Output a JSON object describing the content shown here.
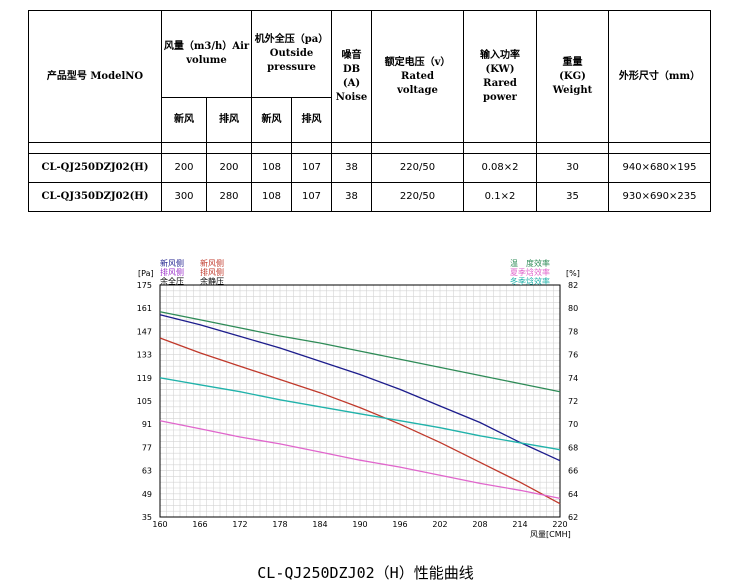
{
  "table": {
    "headers": {
      "model": "产品型号 ModelNO",
      "airflow": [
        "风量（m3/h）Air",
        "volume"
      ],
      "pressure": [
        "机外全压（pa）",
        "Outside",
        "pressure"
      ],
      "noise": [
        "噪音DB",
        "(A)",
        "Noise"
      ],
      "voltage": [
        "额定电压（v）",
        "Rated",
        "voltage"
      ],
      "power": [
        "输入功率",
        "(KW)",
        "Rared power"
      ],
      "weight": [
        "重量",
        "(KG)",
        "Weight"
      ],
      "size": "外形尺寸（mm）",
      "sub_fresh": "新风",
      "sub_exhaust": "排风",
      "sub_fresh2": "新风",
      "sub_exhaust2": "排风"
    },
    "rows": [
      {
        "model": "CL-QJ250DZJ02(H)",
        "air_fresh": "200",
        "air_exhaust": "200",
        "p_fresh": "108",
        "p_exhaust": "107",
        "noise": "38",
        "voltage": "220/50",
        "power": "0.08×2",
        "weight": "30",
        "size": "940×680×195"
      },
      {
        "model": "CL-QJ350DZJ02(H)",
        "air_fresh": "300",
        "air_exhaust": "280",
        "p_fresh": "108",
        "p_exhaust": "107",
        "noise": "38",
        "voltage": "220/50",
        "power": "0.1×2",
        "weight": "35",
        "size": "930×690×235"
      }
    ]
  },
  "chart_data": {
    "type": "line",
    "title": "CL-QJ250DZJ02（H）性能曲线",
    "xlabel": "风量[CMH]",
    "ylabel_left": "[Pa]",
    "ylabel_right": "[%]",
    "xlim": [
      160,
      220
    ],
    "ylim_left": [
      35,
      175
    ],
    "ylim_right": [
      62,
      82
    ],
    "xticks": [
      160,
      166,
      172,
      178,
      184,
      190,
      196,
      202,
      208,
      214,
      220
    ],
    "yticks_left": [
      35,
      49,
      63,
      77,
      91,
      105,
      119,
      133,
      147,
      161,
      175
    ],
    "yticks_right": [
      62,
      64,
      66,
      68,
      70,
      72,
      74,
      76,
      78,
      80,
      82
    ],
    "grid": true,
    "legend_left": [
      {
        "label": "新风侧",
        "color": "#1c1c8c"
      },
      {
        "label": "排风侧",
        "color": "#9b30c9"
      },
      {
        "label": "余全压",
        "color": "#000000"
      },
      {
        "label": "新风侧",
        "color": "#c0392b"
      },
      {
        "label": "排风侧",
        "color": "#c0392b"
      },
      {
        "label": "余静压",
        "color": "#000000"
      }
    ],
    "legend_right": [
      {
        "label": "温　度效率",
        "color": "#2e8b57"
      },
      {
        "label": "夏季焓效率",
        "color": "#e066cc"
      },
      {
        "label": "冬季焓效率",
        "color": "#20b2aa"
      }
    ],
    "series": [
      {
        "axis": "left",
        "color": "#1c1c8c",
        "x": [
          160,
          166,
          172,
          178,
          184,
          190,
          196,
          202,
          208,
          214,
          220
        ],
        "y": [
          157,
          151,
          144,
          137,
          129,
          121,
          112,
          102,
          92,
          80,
          69
        ]
      },
      {
        "axis": "left",
        "color": "#c0392b",
        "x": [
          160,
          166,
          172,
          178,
          184,
          190,
          196,
          202,
          208,
          214,
          220
        ],
        "y": [
          143,
          134,
          126,
          118,
          110,
          101,
          91,
          80,
          68,
          56,
          43
        ]
      },
      {
        "axis": "right",
        "color": "#2e8b57",
        "x": [
          160,
          166,
          172,
          178,
          184,
          190,
          196,
          202,
          208,
          214,
          220
        ],
        "y": [
          79.7,
          79,
          78.3,
          77.6,
          77,
          76.3,
          75.6,
          74.9,
          74.2,
          73.5,
          72.8
        ]
      },
      {
        "axis": "right",
        "color": "#20b2aa",
        "x": [
          160,
          166,
          172,
          178,
          184,
          190,
          196,
          202,
          208,
          214,
          220
        ],
        "y": [
          74,
          73.4,
          72.8,
          72.1,
          71.5,
          70.9,
          70.3,
          69.7,
          69,
          68.4,
          67.8
        ]
      },
      {
        "axis": "right",
        "color": "#e066cc",
        "x": [
          160,
          166,
          172,
          178,
          184,
          190,
          196,
          202,
          208,
          214,
          220
        ],
        "y": [
          70.3,
          69.6,
          68.9,
          68.3,
          67.6,
          66.9,
          66.3,
          65.6,
          64.9,
          64.3,
          63.6
        ]
      }
    ]
  }
}
